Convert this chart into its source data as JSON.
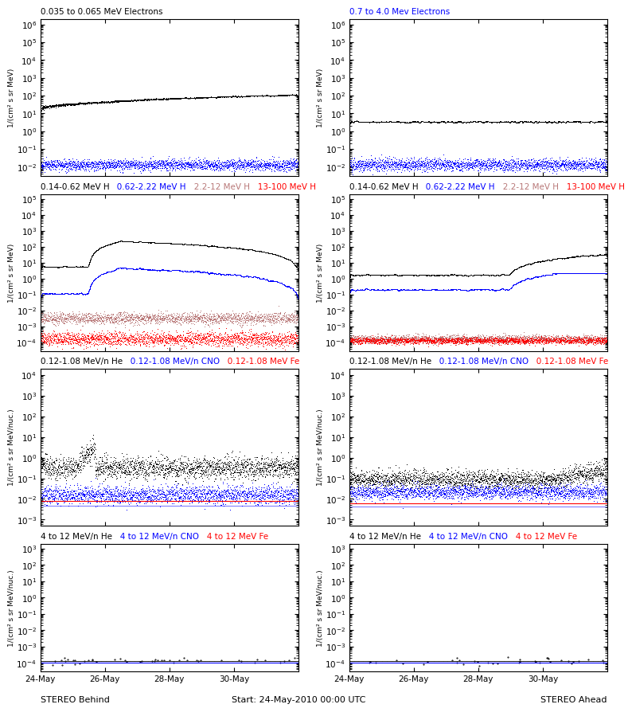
{
  "title_row1_left": "0.035 to 0.065 MeV Electrons",
  "title_row1_right_parts": [
    {
      "text": "0.7 to 4.0 Mev Electrons",
      "color": "blue"
    }
  ],
  "title_row2_parts": [
    {
      "text": "0.14-0.62 MeV H",
      "color": "black"
    },
    {
      "text": "   0.62-2.22 MeV H",
      "color": "blue"
    },
    {
      "text": "   2.2-12 MeV H",
      "color": "#b87878"
    },
    {
      "text": "   13-100 MeV H",
      "color": "red"
    }
  ],
  "title_row3_parts": [
    {
      "text": "0.12-1.08 MeV/n He",
      "color": "black"
    },
    {
      "text": "   0.12-1.08 MeV/n CNO",
      "color": "blue"
    },
    {
      "text": "   0.12-1.08 MeV Fe",
      "color": "red"
    }
  ],
  "title_row4_parts": [
    {
      "text": "4 to 12 MeV/n He",
      "color": "black"
    },
    {
      "text": "   4 to 12 MeV/n CNO",
      "color": "blue"
    },
    {
      "text": "   4 to 12 MeV Fe",
      "color": "red"
    }
  ],
  "ylabel_electrons": "1/(cm² s sr MeV)",
  "ylabel_H": "1/(cm² s sr MeV)",
  "ylabel_heavy": "1/(cm² s sr MeV/nuc.)",
  "xlabel_left": "STEREO Behind",
  "xlabel_right": "STEREO Ahead",
  "xlabel_center": "Start: 24-May-2010 00:00 UTC",
  "xtick_labels": [
    "24-May",
    "26-May",
    "28-May",
    "30-May"
  ],
  "ndays": 8,
  "seed": 42,
  "brown_color": "#b87878",
  "row1_ylim": [
    0.003,
    2000000.0
  ],
  "row2_ylim": [
    3e-05,
    200000.0
  ],
  "row3_ylim": [
    0.0005,
    20000.0
  ],
  "row4_ylim": [
    3e-05,
    2000.0
  ]
}
